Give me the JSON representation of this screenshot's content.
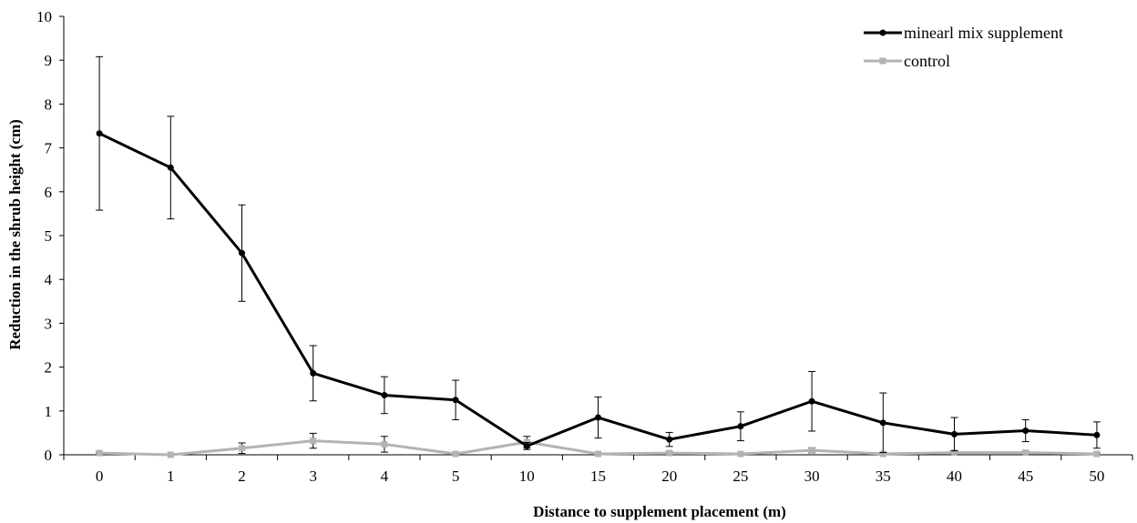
{
  "chart_data": {
    "type": "line",
    "title": "",
    "xlabel": "Distance to supplement placement (m)",
    "ylabel": "Reduction in the shrub height (cm)",
    "categories": [
      "0",
      "1",
      "2",
      "3",
      "4",
      "5",
      "10",
      "15",
      "20",
      "25",
      "30",
      "35",
      "40",
      "45",
      "50"
    ],
    "ylim": [
      0,
      10
    ],
    "yticks": [
      "0",
      "1",
      "2",
      "3",
      "4",
      "5",
      "6",
      "7",
      "8",
      "9",
      "10"
    ],
    "grid": false,
    "legend_position": "top-right",
    "series": [
      {
        "name": "minearl mix supplement",
        "color": "#000000",
        "marker": "circle",
        "values": [
          7.33,
          6.55,
          4.6,
          1.86,
          1.36,
          1.25,
          0.2,
          0.85,
          0.35,
          0.65,
          1.22,
          0.73,
          0.47,
          0.55,
          0.45
        ],
        "error": [
          1.75,
          1.17,
          1.1,
          0.63,
          0.42,
          0.45,
          0.08,
          0.47,
          0.16,
          0.33,
          0.68,
          0.68,
          0.38,
          0.25,
          0.3
        ]
      },
      {
        "name": "control",
        "color": "#b3b3b3",
        "marker": "square",
        "values": [
          0.04,
          0.0,
          0.15,
          0.32,
          0.24,
          0.02,
          0.29,
          0.02,
          0.04,
          0.02,
          0.1,
          0.02,
          0.05,
          0.05,
          0.02
        ],
        "error": [
          0.02,
          0.0,
          0.12,
          0.17,
          0.18,
          0.02,
          0.13,
          0.02,
          0.03,
          0.02,
          0.06,
          0.02,
          0.04,
          0.03,
          0.02
        ]
      }
    ]
  }
}
